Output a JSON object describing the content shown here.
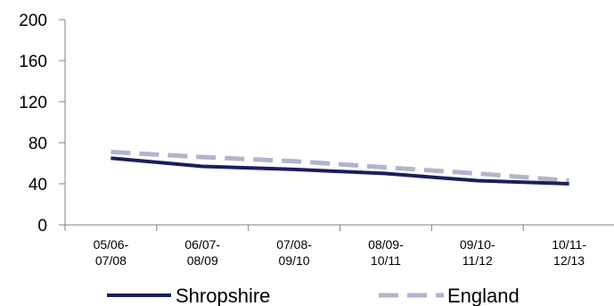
{
  "chart_data": {
    "type": "line",
    "categories": [
      "05/06-\n07/08",
      "06/07-\n08/09",
      "07/08-\n09/10",
      "08/09-\n10/11",
      "09/10-\n11/12",
      "10/11-\n12/13"
    ],
    "series": [
      {
        "name": "Shropshire",
        "values": [
          65,
          57,
          54,
          50,
          43,
          40
        ],
        "color": "#1a1f5c",
        "style": "solid"
      },
      {
        "name": "England",
        "values": [
          71,
          66,
          62,
          56,
          50,
          43
        ],
        "color": "#b3b3cc",
        "style": "dashed"
      }
    ],
    "ylim": [
      0,
      200
    ],
    "yticks": [
      0,
      40,
      80,
      120,
      160,
      200
    ],
    "grid": false,
    "legend": "bottom",
    "title": "",
    "xlabel": "",
    "ylabel": ""
  }
}
